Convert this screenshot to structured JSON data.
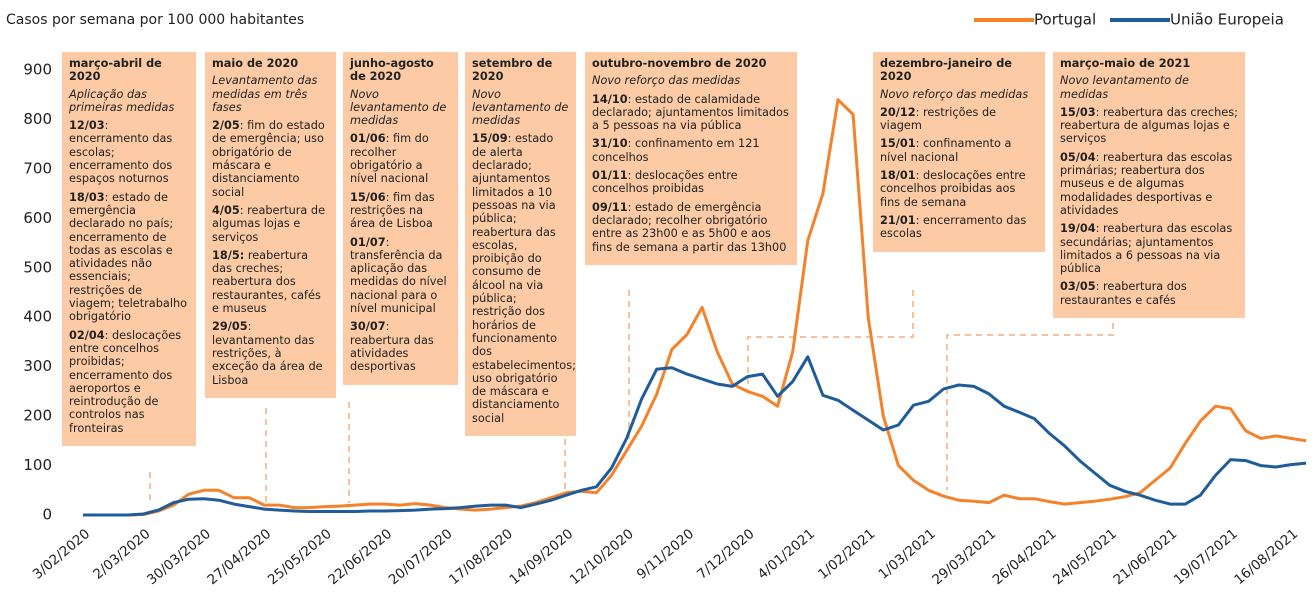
{
  "chart_data": {
    "type": "line",
    "title": "Casos por semana por 100 000 habitantes",
    "categories": [
      "3/02/2020",
      null,
      null,
      null,
      "2/03/2020",
      null,
      null,
      null,
      "30/03/2020",
      null,
      null,
      null,
      "27/04/2020",
      null,
      null,
      null,
      "25/05/2020",
      null,
      null,
      null,
      "22/06/2020",
      null,
      null,
      null,
      "20/07/2020",
      null,
      null,
      null,
      "17/08/2020",
      null,
      null,
      null,
      "14/09/2020",
      null,
      null,
      null,
      "12/10/2020",
      null,
      null,
      null,
      "9/11/2020",
      null,
      null,
      null,
      "7/12/2020",
      null,
      null,
      null,
      "4/01/2021",
      null,
      null,
      null,
      "1/02/2021",
      null,
      null,
      null,
      "1/03/2021",
      null,
      null,
      null,
      "29/03/2021",
      null,
      null,
      null,
      "26/04/2021",
      null,
      null,
      null,
      "24/05/2021",
      null,
      null,
      null,
      "21/06/2021",
      null,
      null,
      null,
      "19/07/2021",
      null,
      null,
      null,
      "16/08/2021",
      null
    ],
    "series": [
      {
        "name": "Portugal",
        "color": "#f4822a",
        "values": [
          0,
          0,
          0,
          0,
          1,
          8,
          20,
          42,
          50,
          50,
          35,
          35,
          20,
          20,
          15,
          15,
          17,
          18,
          20,
          22,
          22,
          20,
          23,
          20,
          15,
          12,
          10,
          12,
          15,
          18,
          25,
          35,
          45,
          48,
          45,
          80,
          130,
          180,
          245,
          335,
          365,
          420,
          330,
          265,
          250,
          240,
          220,
          330,
          555,
          650,
          840,
          810,
          400,
          200,
          100,
          70,
          50,
          38,
          30,
          28,
          25,
          40,
          33,
          33,
          27,
          22,
          25,
          28,
          32,
          37,
          45,
          70,
          95,
          145,
          190,
          220,
          215,
          170,
          155,
          160,
          155,
          150
        ]
      },
      {
        "name": "União Europeia",
        "color": "#1f5c99",
        "values": [
          0,
          0,
          0,
          0,
          2,
          10,
          25,
          32,
          33,
          30,
          22,
          17,
          12,
          10,
          8,
          7,
          7,
          7,
          7,
          8,
          8,
          9,
          10,
          12,
          13,
          15,
          18,
          20,
          20,
          15,
          22,
          30,
          40,
          50,
          57,
          95,
          155,
          235,
          295,
          298,
          285,
          275,
          265,
          260,
          280,
          285,
          240,
          270,
          320,
          242,
          232,
          212,
          192,
          172,
          182,
          222,
          230,
          255,
          263,
          260,
          245,
          220,
          208,
          195,
          165,
          140,
          110,
          85,
          60,
          48,
          40,
          30,
          22,
          22,
          40,
          80,
          112,
          110,
          100,
          97,
          102,
          105
        ]
      }
    ],
    "ylim": [
      0,
      900
    ],
    "yticks": [
      0,
      100,
      200,
      300,
      400,
      500,
      600,
      700,
      800,
      900
    ],
    "grid": false,
    "legend": "top-right",
    "annotations": [
      {
        "title": "março-abril de 2020",
        "subtitle": "Aplicação das primeiras medidas",
        "items": [
          {
            "date": "12/03",
            "text": ": encerramento das escolas; encerramento dos espaços noturnos"
          },
          {
            "date": "18/03",
            "text": ": estado de emergência declarado no país; encerramento de todas as escolas e atividades não essenciais; restrições de viagem; teletrabalho obrigatório"
          },
          {
            "date": "02/04",
            "text": ": deslocações entre concelhos proibidas; encerramento dos aeroportos e reintrodução de controlos nas fronteiras"
          }
        ]
      },
      {
        "title": "maio de 2020",
        "subtitle": "Levantamento das medidas em três fases",
        "items": [
          {
            "date": "2/05",
            "text": ": fim do estado de emergência; uso obrigatório de máscara e distanciamento social"
          },
          {
            "date": "4/05",
            "text": ": reabertura de algumas lojas e serviços"
          },
          {
            "date": "18/5:",
            "text": " reabertura das creches; reabertura dos restaurantes, cafés e museus"
          },
          {
            "date": "29/05",
            "text": ": levantamento das restrições, à exceção da área de Lisboa"
          }
        ]
      },
      {
        "title": "junho-agosto de 2020",
        "subtitle": "Novo levantamento de medidas",
        "items": [
          {
            "date": "01/06",
            "text": ": fim do recolher obrigatório a nível nacional"
          },
          {
            "date": "15/06",
            "text": ": fim das restrições na área de Lisboa"
          },
          {
            "date": "01/07",
            "text": ": transferência da aplicação das medidas do nível nacional para o nível municipal"
          },
          {
            "date": "30/07",
            "text": ": reabertura das atividades desportivas"
          }
        ]
      },
      {
        "title": "setembro de 2020",
        "subtitle": "Novo levantamento de medidas",
        "items": [
          {
            "date": "15/09",
            "text": ": estado de alerta declarado; ajuntamentos limitados a 10 pessoas na via pública; reabertura das escolas, proibição do consumo de álcool na via pública; restrição dos horários de funcionamento dos estabelecimentos; uso obrigatório de máscara e distanciamento social"
          }
        ]
      },
      {
        "title": "outubro-novembro de 2020",
        "subtitle": "Novo reforço das medidas",
        "items": [
          {
            "date": "14/10",
            "text": ": estado de calamidade declarado; ajuntamentos limitados a 5 pessoas na via pública"
          },
          {
            "date": "31/10",
            "text": ": confinamento em 121 concelhos"
          },
          {
            "date": "01/11",
            "text": ": deslocações entre concelhos proibidas"
          },
          {
            "date": "09/11",
            "text": ": estado de emergência declarado; recolher obrigatório entre as 23h00 e as 5h00 e aos fins de semana a partir das 13h00"
          }
        ]
      },
      {
        "title": "dezembro-janeiro de 2020",
        "subtitle": "Novo reforço das medidas",
        "items": [
          {
            "date": "20/12",
            "text": ": restrições de viagem"
          },
          {
            "date": "15/01",
            "text": ": confinamento a nível nacional"
          },
          {
            "date": "18/01",
            "text": ": deslocações entre concelhos proibidas aos fins de semana"
          },
          {
            "date": "21/01",
            "text": ": encerramento das escolas"
          }
        ]
      },
      {
        "title": "março-maio de 2021",
        "subtitle": "Novo levantamento de medidas",
        "items": [
          {
            "date": "15/03",
            "text": ": reabertura das creches; reabertura de algumas lojas e serviços"
          },
          {
            "date": "05/04",
            "text": ": reabertura das escolas primárias; reabertura dos museus e de algumas modalidades desportivas e atividades"
          },
          {
            "date": "19/04",
            "text": ": reabertura das escolas secundárias; ajuntamentos limitados a 6 pessoas na via pública"
          },
          {
            "date": "03/05",
            "text": ": reabertura dos restaurantes e cafés"
          }
        ]
      }
    ]
  }
}
